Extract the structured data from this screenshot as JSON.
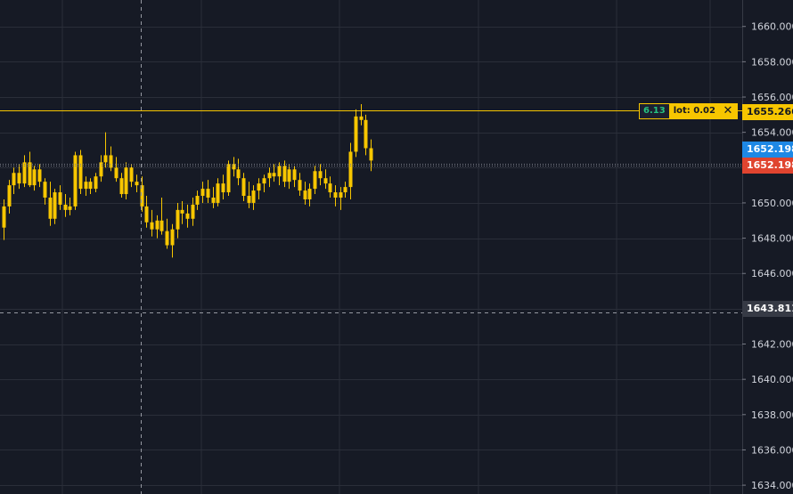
{
  "chart_data": {
    "type": "candlestick",
    "ylim": [
      1633.5,
      1661.5
    ],
    "y_ticks": [
      "1660.000",
      "1658.000",
      "1656.000",
      "1654.000",
      "1650.000",
      "1648.000",
      "1646.000",
      "1642.000",
      "1640.000",
      "1638.000",
      "1636.000",
      "1634.000"
    ],
    "series": [
      {
        "values": [
          [
            1648.6,
            1650.2,
            1647.9,
            1649.8
          ],
          [
            1649.8,
            1651.3,
            1649.4,
            1651.0
          ],
          [
            1651.0,
            1652.0,
            1650.5,
            1651.7
          ],
          [
            1651.7,
            1652.2,
            1650.8,
            1651.1
          ],
          [
            1651.1,
            1652.7,
            1650.9,
            1652.3
          ],
          [
            1652.3,
            1652.9,
            1650.9,
            1651.0
          ],
          [
            1651.0,
            1652.1,
            1650.7,
            1651.9
          ],
          [
            1651.9,
            1652.2,
            1650.9,
            1651.2
          ],
          [
            1651.2,
            1651.4,
            1649.9,
            1650.3
          ],
          [
            1650.3,
            1651.2,
            1648.7,
            1649.1
          ],
          [
            1649.1,
            1650.8,
            1648.8,
            1650.6
          ],
          [
            1650.6,
            1651.0,
            1649.6,
            1649.9
          ],
          [
            1649.9,
            1650.5,
            1649.2,
            1649.6
          ],
          [
            1649.6,
            1650.3,
            1649.3,
            1649.8
          ],
          [
            1649.8,
            1652.9,
            1649.6,
            1652.7
          ],
          [
            1652.7,
            1653.0,
            1650.5,
            1650.8
          ],
          [
            1650.8,
            1651.5,
            1650.4,
            1651.2
          ],
          [
            1651.2,
            1651.4,
            1650.5,
            1650.8
          ],
          [
            1650.8,
            1651.7,
            1650.6,
            1651.5
          ],
          [
            1651.5,
            1652.7,
            1651.2,
            1652.3
          ],
          [
            1652.3,
            1654.0,
            1652.0,
            1652.7
          ],
          [
            1652.7,
            1653.2,
            1651.8,
            1652.0
          ],
          [
            1652.0,
            1652.6,
            1651.2,
            1651.4
          ],
          [
            1651.4,
            1651.7,
            1650.3,
            1650.5
          ],
          [
            1650.5,
            1652.3,
            1650.2,
            1652.0
          ],
          [
            1652.0,
            1652.2,
            1650.9,
            1651.2
          ],
          [
            1651.2,
            1651.6,
            1650.6,
            1651.0
          ],
          [
            1651.0,
            1651.5,
            1649.5,
            1649.8
          ],
          [
            1649.8,
            1650.4,
            1648.6,
            1648.9
          ],
          [
            1648.9,
            1649.6,
            1648.1,
            1648.5
          ],
          [
            1648.5,
            1649.3,
            1648.0,
            1649.0
          ],
          [
            1649.0,
            1650.3,
            1648.2,
            1648.4
          ],
          [
            1648.4,
            1649.1,
            1647.4,
            1647.6
          ],
          [
            1647.6,
            1648.8,
            1646.9,
            1648.5
          ],
          [
            1648.5,
            1650.0,
            1648.0,
            1649.6
          ],
          [
            1649.6,
            1650.1,
            1648.8,
            1649.4
          ],
          [
            1649.4,
            1649.9,
            1648.6,
            1649.1
          ],
          [
            1649.1,
            1650.3,
            1648.7,
            1649.9
          ],
          [
            1649.9,
            1650.7,
            1649.6,
            1650.4
          ],
          [
            1650.4,
            1651.2,
            1650.0,
            1650.8
          ],
          [
            1650.8,
            1651.3,
            1650.0,
            1650.3
          ],
          [
            1650.3,
            1650.9,
            1649.7,
            1650.0
          ],
          [
            1650.0,
            1651.4,
            1649.8,
            1651.1
          ],
          [
            1651.1,
            1651.6,
            1650.2,
            1650.6
          ],
          [
            1650.6,
            1652.4,
            1650.4,
            1652.2
          ],
          [
            1652.2,
            1652.6,
            1651.5,
            1651.9
          ],
          [
            1651.9,
            1652.5,
            1651.0,
            1651.4
          ],
          [
            1651.4,
            1651.7,
            1650.1,
            1650.4
          ],
          [
            1650.4,
            1651.2,
            1649.7,
            1650.0
          ],
          [
            1650.0,
            1651.0,
            1649.6,
            1650.7
          ],
          [
            1650.7,
            1651.4,
            1650.2,
            1651.1
          ],
          [
            1651.1,
            1651.6,
            1650.6,
            1651.4
          ],
          [
            1651.4,
            1652.0,
            1650.9,
            1651.7
          ],
          [
            1651.7,
            1652.2,
            1651.2,
            1651.5
          ],
          [
            1651.5,
            1652.3,
            1651.0,
            1652.1
          ],
          [
            1652.1,
            1652.4,
            1650.9,
            1651.2
          ],
          [
            1651.2,
            1652.2,
            1650.8,
            1651.9
          ],
          [
            1651.9,
            1652.1,
            1650.9,
            1651.3
          ],
          [
            1651.3,
            1651.7,
            1650.4,
            1650.7
          ],
          [
            1650.7,
            1651.2,
            1649.9,
            1650.2
          ],
          [
            1650.2,
            1651.1,
            1649.8,
            1650.8
          ],
          [
            1650.8,
            1652.1,
            1650.5,
            1651.8
          ],
          [
            1651.8,
            1652.2,
            1651.0,
            1651.4
          ],
          [
            1651.4,
            1651.9,
            1650.8,
            1651.1
          ],
          [
            1651.1,
            1651.5,
            1650.3,
            1650.6
          ],
          [
            1650.6,
            1651.0,
            1649.8,
            1650.3
          ],
          [
            1650.3,
            1650.9,
            1649.6,
            1650.6
          ],
          [
            1650.6,
            1651.2,
            1650.3,
            1650.9
          ],
          [
            1650.9,
            1653.4,
            1650.2,
            1652.9
          ],
          [
            1652.9,
            1655.3,
            1652.6,
            1654.9
          ],
          [
            1654.9,
            1655.6,
            1654.4,
            1654.7
          ],
          [
            1654.7,
            1655.0,
            1652.7,
            1653.1
          ],
          [
            1653.1,
            1653.6,
            1651.8,
            1652.4
          ]
        ]
      }
    ],
    "markers": {
      "bid": "1652.198",
      "ask": "1652.198",
      "order_line": "1655.266",
      "crosshair": "1643.811"
    },
    "order": {
      "pnl": "6.13",
      "lot": "lot: 0.02",
      "close_icon": "✕"
    },
    "colors": {
      "background": "#161a25",
      "grid": "#2a2e39",
      "candle": "#f7c600",
      "bid": "#1e88e5",
      "ask": "#e0442f",
      "order_line": "#f7c600",
      "crosshair_label": "#363a45"
    }
  }
}
